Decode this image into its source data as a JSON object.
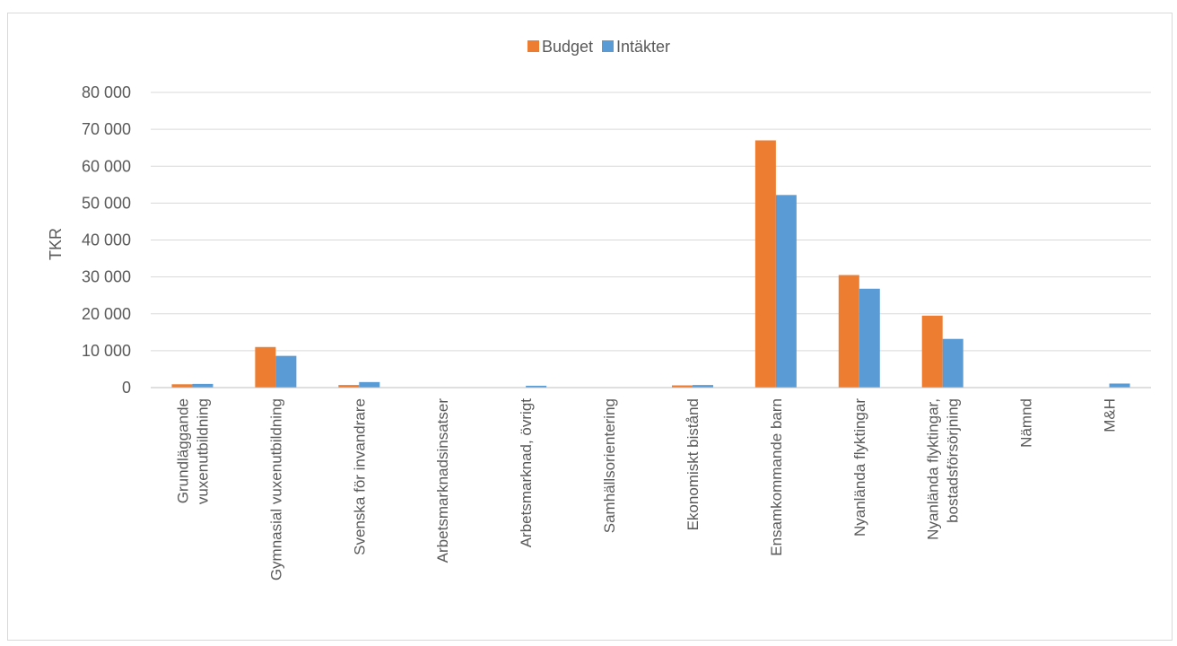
{
  "chart_data": {
    "type": "bar",
    "ylabel": "TKR",
    "ylim": [
      0,
      80000
    ],
    "yticks": [
      0,
      10000,
      20000,
      30000,
      40000,
      50000,
      60000,
      70000,
      80000
    ],
    "ytick_labels": [
      "0",
      "10 000",
      "20 000",
      "30 000",
      "40 000",
      "50 000",
      "60 000",
      "70 000",
      "80 000"
    ],
    "grid": true,
    "legend_position": "top-center",
    "categories": [
      [
        "Grundläggande",
        "vuxenutbildning"
      ],
      [
        "Gymnasial vuxenutbildning"
      ],
      [
        "Svenska för invandrare"
      ],
      [
        "Arbetsmarknadsinsatser"
      ],
      [
        "Arbetsmarknad, övrigt"
      ],
      [
        "Samhällsorientering"
      ],
      [
        "Ekonomiskt bistånd"
      ],
      [
        "Ensamkommande barn"
      ],
      [
        "Nyanlända flyktingar"
      ],
      [
        "Nyanlända flyktingar,",
        "bostadsförsörjning"
      ],
      [
        "Nämnd"
      ],
      [
        "M&H"
      ]
    ],
    "series": [
      {
        "name": "Budget",
        "color": "#ed7d31",
        "values": [
          900,
          11000,
          700,
          0,
          0,
          0,
          600,
          67000,
          30500,
          19500,
          0,
          0
        ]
      },
      {
        "name": "Intäkter",
        "color": "#5b9bd5",
        "values": [
          1000,
          8600,
          1500,
          0,
          500,
          0,
          700,
          52200,
          26800,
          13200,
          0,
          1100
        ]
      }
    ]
  }
}
